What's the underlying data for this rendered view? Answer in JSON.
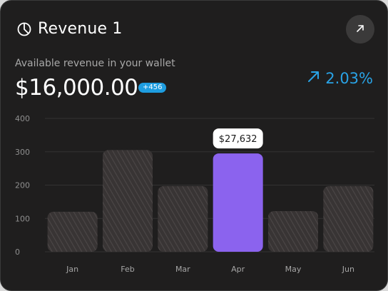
{
  "card": {
    "title": "Revenue 1",
    "subtitle": "Available revenue in your wallet",
    "amount": "$16,000.00",
    "delta_badge": "+456",
    "growth": "2.03%",
    "title_icon": "pie-chart-icon",
    "action_icon": "arrow-up-right-icon",
    "growth_icon": "arrow-up-right-icon"
  },
  "colors": {
    "background": "#1f1e1e",
    "highlight_bar": "#8b63ee",
    "growth": "#29a3e6",
    "badge": "#1e9de0"
  },
  "chart_data": {
    "type": "bar",
    "categories": [
      "Jan",
      "Feb",
      "Mar",
      "Apr",
      "May",
      "Jun"
    ],
    "values": [
      120,
      305,
      197,
      295,
      122,
      197
    ],
    "ylim": [
      0,
      400
    ],
    "yticks": [
      0,
      100,
      200,
      300,
      400
    ],
    "highlight_index": 3,
    "highlight_label": "$27,632",
    "grid": true
  }
}
